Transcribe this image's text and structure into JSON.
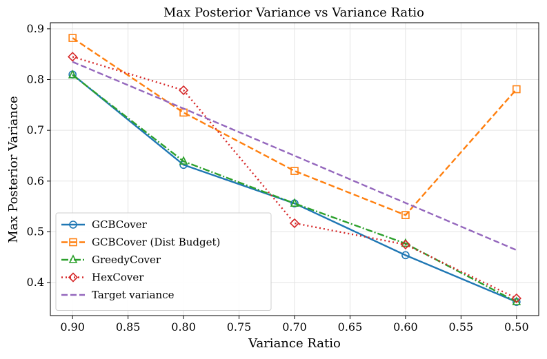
{
  "chart_data": {
    "type": "line",
    "title": "Max Posterior Variance vs Variance Ratio",
    "xlabel": "Variance Ratio",
    "ylabel": "Max Posterior Variance",
    "x": [
      0.9,
      0.8,
      0.7,
      0.6,
      0.5
    ],
    "xlim": [
      0.92,
      0.48
    ],
    "ylim": [
      0.335,
      0.912
    ],
    "x_reversed": true,
    "xticks": [
      0.9,
      0.85,
      0.8,
      0.75,
      0.7,
      0.65,
      0.6,
      0.55,
      0.5
    ],
    "xtick_labels": [
      "0.90",
      "0.85",
      "0.80",
      "0.75",
      "0.70",
      "0.65",
      "0.60",
      "0.55",
      "0.50"
    ],
    "yticks": [
      0.4,
      0.5,
      0.6,
      0.7,
      0.8,
      0.9
    ],
    "ytick_labels": [
      "0.4",
      "0.5",
      "0.6",
      "0.7",
      "0.8",
      "0.9"
    ],
    "grid": true,
    "legend_position": "lower-left",
    "series": [
      {
        "name": "GCBCover",
        "values": [
          0.81,
          0.632,
          0.556,
          0.454,
          0.362
        ],
        "color": "#1f77b4",
        "marker": "circle",
        "dash": "solid"
      },
      {
        "name": "GCBCover (Dist Budget)",
        "values": [
          0.882,
          0.735,
          0.62,
          0.533,
          0.781
        ],
        "color": "#ff7f0e",
        "marker": "square",
        "dash": "dashed"
      },
      {
        "name": "GreedyCover",
        "values": [
          0.809,
          0.639,
          0.556,
          0.477,
          0.362
        ],
        "color": "#2ca02c",
        "marker": "triangle",
        "dash": "dashdot"
      },
      {
        "name": "HexCover",
        "values": [
          0.845,
          0.779,
          0.517,
          0.475,
          0.369
        ],
        "color": "#d62728",
        "marker": "diamond",
        "dash": "dotted"
      },
      {
        "name": "Target variance",
        "values": [
          0.835,
          0.743,
          0.65,
          0.557,
          0.464
        ],
        "color": "#9467bd",
        "marker": "none",
        "dash": "dashed"
      }
    ]
  }
}
